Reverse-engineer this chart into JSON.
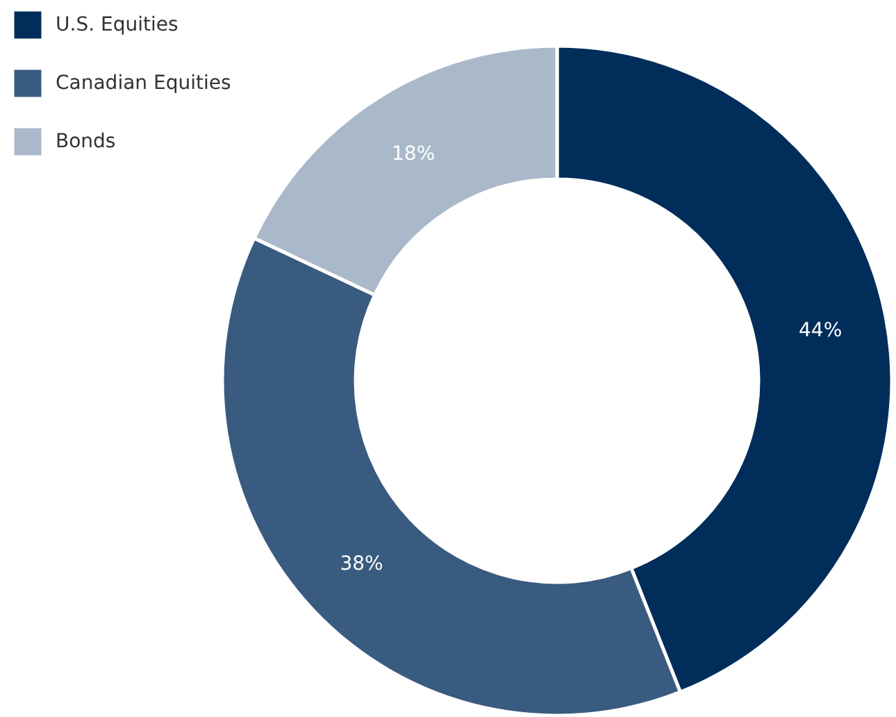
{
  "chart_data": {
    "type": "donut",
    "categories": [
      "U.S. Equities",
      "Canadian Equities",
      "Bonds"
    ],
    "values": [
      44,
      38,
      18
    ],
    "colors": [
      "#002d5a",
      "#3a5b80",
      "#a9b9ca"
    ],
    "value_labels": [
      "44%",
      "38%",
      "18%"
    ],
    "legend": "top left"
  }
}
